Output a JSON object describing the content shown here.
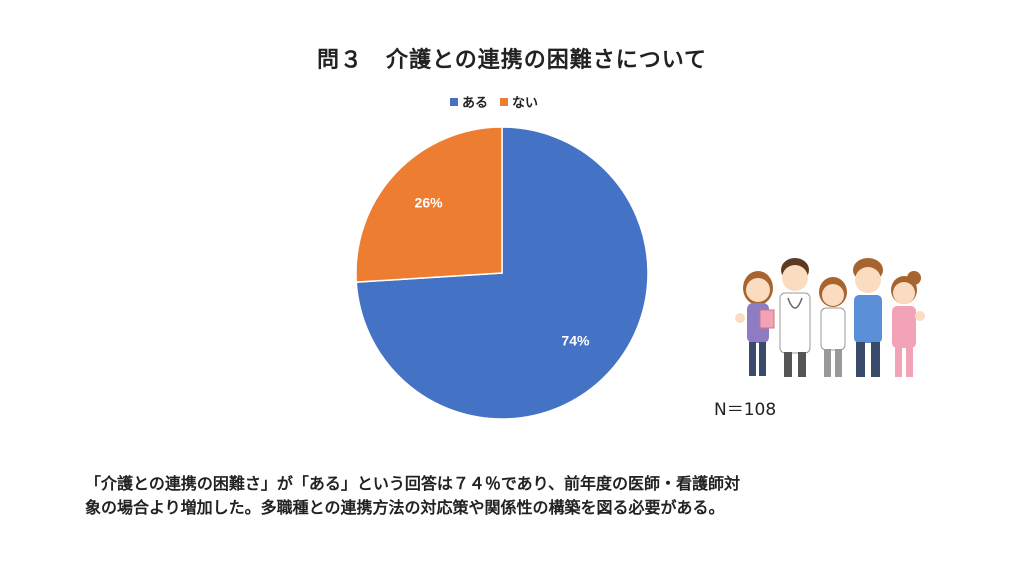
{
  "chart_data": {
    "type": "pie",
    "title": "問３　介護との連携の困難さについて",
    "slices": [
      {
        "name": "ある",
        "value": 74,
        "label": "74%",
        "color": "#4472C4"
      },
      {
        "name": "ない",
        "value": 26,
        "label": "26%",
        "color": "#ED7D31"
      }
    ],
    "legend_position": "top",
    "start_angle_deg": 0,
    "direction": "clockwise"
  },
  "n_label": "N＝108",
  "caption": {
    "line1": "「介護との連携の困難さ」が「ある」という回答は７４％であり、前年度の医師・看護師対",
    "line2": "象の場合より増加した。多職種との連携方法の対応策や関係性の構築を図る必要がある。"
  },
  "illustration": {
    "icon": "medical-staff-group-icon",
    "colors": {
      "skin": "#FCDCC0",
      "hair_brown": "#A8642E",
      "hair_dark": "#5A3A20",
      "scrub_blue": "#5B8FD8",
      "scrub_pink": "#F2A3B8",
      "coat_white": "#FFFFFF",
      "pants_navy": "#3A4A6B"
    }
  }
}
